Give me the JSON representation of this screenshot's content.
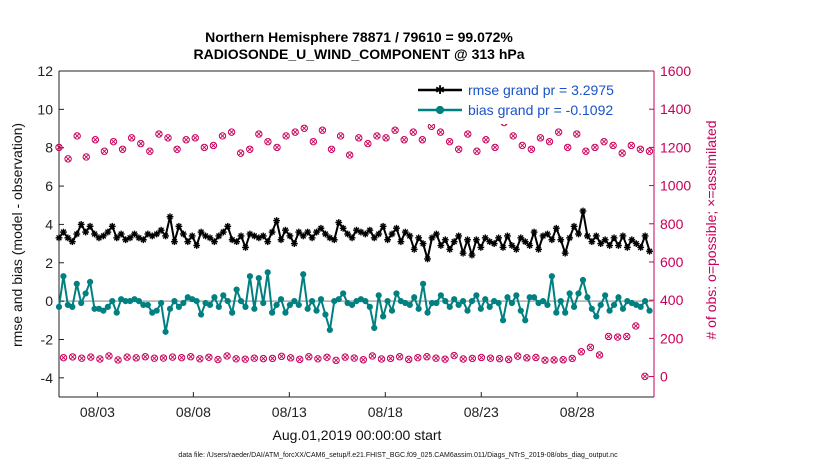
{
  "chart_data": {
    "type": "line",
    "title": "Northern Hemisphere 78871 / 79610 = 99.072%",
    "subtitle": "RADIOSONDE_U_WIND_COMPONENT @ 313 hPa",
    "xlabel": "Aug.01,2019 00:00:00 start",
    "ylabel_left": "rmse and bias (model - observation)",
    "ylabel_right": "# of obs: o=possible; ×=assimilated",
    "footer": "data file: /Users/raeder/DAI/ATM_forcXX/CAM6_setup/f.e21.FHIST_BGC.f09_025.CAM6assim.011/Diags_NTrS_2019-08/obs_diag_output.nc",
    "x_start_day": 1,
    "x_end_day": 32,
    "x_range": [
      1.0,
      32.0
    ],
    "x_ticks": [
      {
        "day": 3,
        "label": "08/03"
      },
      {
        "day": 8,
        "label": "08/08"
      },
      {
        "day": 13,
        "label": "08/13"
      },
      {
        "day": 18,
        "label": "08/18"
      },
      {
        "day": 23,
        "label": "08/23"
      },
      {
        "day": 28,
        "label": "08/28"
      }
    ],
    "ylim_left": [
      -5,
      12
    ],
    "yticks_left": [
      "-4",
      "-2",
      "0",
      "2",
      "4",
      "6",
      "8",
      "10",
      "12"
    ],
    "ylim_right": [
      -107,
      1600
    ],
    "yticks_right": [
      "0",
      "200",
      "400",
      "600",
      "800",
      "1000",
      "1200",
      "1400",
      "1600"
    ],
    "zero_line": 0,
    "legend": {
      "position": "top-right",
      "entries": [
        {
          "name": "rmse grand pr = 3.2975"
        },
        {
          "name": "bias grand pr = -0.1092"
        }
      ]
    },
    "series": [
      {
        "name": "rmse",
        "axis": "left",
        "color": "#000000",
        "marker": "asterisk",
        "values": [
          3.3,
          3.6,
          3.3,
          3.1,
          3.5,
          4.0,
          3.6,
          3.9,
          3.5,
          3.3,
          3.4,
          3.6,
          3.9,
          3.3,
          3.5,
          3.2,
          3.3,
          3.5,
          3.3,
          3.2,
          3.5,
          3.4,
          3.5,
          3.7,
          3.4,
          4.4,
          3.1,
          3.9,
          3.5,
          3.1,
          3.4,
          2.9,
          3.6,
          3.4,
          3.3,
          3.1,
          3.4,
          3.6,
          3.9,
          3.2,
          3.1,
          3.4,
          2.8,
          3.5,
          3.4,
          3.3,
          3.4,
          3.1,
          3.6,
          4.2,
          3.2,
          3.7,
          3.4,
          3.0,
          3.6,
          3.4,
          3.6,
          3.3,
          3.6,
          3.8,
          3.5,
          3.3,
          3.2,
          4.1,
          3.8,
          3.5,
          3.3,
          3.7,
          3.6,
          3.5,
          3.7,
          3.3,
          3.5,
          3.9,
          3.2,
          3.5,
          3.8,
          3.1,
          3.6,
          3.4,
          2.7,
          3.3,
          3.0,
          2.2,
          3.3,
          3.5,
          2.9,
          3.2,
          2.7,
          3.1,
          3.4,
          2.5,
          3.2,
          2.4,
          3.2,
          2.8,
          3.3,
          3.1,
          3.0,
          3.3,
          2.8,
          3.4,
          2.9,
          2.7,
          3.3,
          3.1,
          2.9,
          3.6,
          2.7,
          3.4,
          3.5,
          3.2,
          3.8,
          3.2,
          2.5,
          3.3,
          3.9,
          3.5,
          4.7,
          3.4,
          3.1,
          3.4,
          3.0,
          3.2,
          2.9,
          3.3,
          2.9,
          3.4,
          2.8,
          3.2,
          3.0,
          2.8,
          3.4,
          2.6
        ]
      },
      {
        "name": "bias",
        "axis": "left",
        "color": "#008080",
        "marker": "circle",
        "values": [
          -0.3,
          1.3,
          -0.2,
          -0.3,
          0.9,
          -0.1,
          0.4,
          1.0,
          -0.4,
          -0.4,
          -0.5,
          -0.3,
          0.0,
          -0.6,
          0.1,
          0.0,
          0.0,
          0.1,
          0.0,
          -0.2,
          -0.2,
          -0.6,
          -0.5,
          -0.1,
          -1.6,
          -0.4,
          0.0,
          -0.3,
          -0.1,
          0.2,
          0.1,
          0.0,
          -0.7,
          -0.1,
          -0.2,
          0.2,
          -0.3,
          0.3,
          0.0,
          -0.6,
          0.6,
          0.0,
          -0.3,
          1.3,
          -0.4,
          1.2,
          -0.1,
          1.5,
          -0.6,
          -0.2,
          0.1,
          -0.6,
          -0.2,
          0.0,
          -0.2,
          1.4,
          -0.4,
          0.0,
          -0.5,
          0.1,
          -0.7,
          -1.5,
          0.0,
          0.1,
          0.4,
          -0.1,
          -0.2,
          0.0,
          0.1,
          0.0,
          -0.3,
          -1.4,
          0.3,
          -0.8,
          0.0,
          -0.5,
          0.4,
          0.0,
          -0.1,
          -0.2,
          0.2,
          -0.4,
          0.9,
          -0.6,
          -0.1,
          -0.1,
          0.3,
          0.0,
          -0.3,
          0.1,
          -0.2,
          0.0,
          -0.5,
          0.0,
          0.3,
          -0.4,
          0.1,
          -0.3,
          0.0,
          -0.1,
          -1.0,
          0.2,
          -0.1,
          0.3,
          -0.5,
          -1.0,
          0.2,
          0.2,
          -0.1,
          0.0,
          -0.2,
          1.3,
          -0.6,
          0.0,
          -0.6,
          0.4,
          -0.3,
          0.4,
          1.1,
          0.2,
          -0.4,
          -0.8,
          -0.2,
          0.3,
          -0.5,
          -0.2,
          0.2,
          -0.4,
          0.0,
          -0.1,
          -0.2,
          -0.3,
          0.0,
          -0.5
        ]
      },
      {
        "name": "obs possible",
        "axis": "right",
        "color": "#c8005a",
        "marker": "circle-open",
        "values": [
          1200,
          99,
          1140,
          103,
          1260,
          96,
          1150,
          102,
          1240,
          92,
          1180,
          108,
          1230,
          87,
          1190,
          102,
          1250,
          98,
          1220,
          104,
          1180,
          96,
          1270,
          97,
          1250,
          102,
          1190,
          99,
          1240,
          104,
          1250,
          93,
          1200,
          101,
          1210,
          89,
          1260,
          108,
          1280,
          93,
          1170,
          91,
          1190,
          96,
          1270,
          94,
          1230,
          95,
          1200,
          106,
          1260,
          98,
          1280,
          90,
          1300,
          104,
          1230,
          93,
          1290,
          101,
          1190,
          85,
          1260,
          102,
          1160,
          97,
          1250,
          88,
          1220,
          108,
          1260,
          92,
          1250,
          95,
          1290,
          104,
          1240,
          90,
          1280,
          99,
          1240,
          104,
          1310,
          96,
          1280,
          91,
          1230,
          110,
          1190,
          92,
          1270,
          95,
          1180,
          100,
          1240,
          96,
          1200,
          94,
          1330,
          90,
          1260,
          107,
          1210,
          98,
          1190,
          100,
          1250,
          86,
          1230,
          87,
          1280,
          88,
          1200,
          95,
          1270,
          130,
          1180,
          153,
          1200,
          113,
          1230,
          210,
          1210,
          207,
          1170,
          210,
          1210,
          265,
          1190,
          1,
          1180
        ]
      }
    ]
  }
}
